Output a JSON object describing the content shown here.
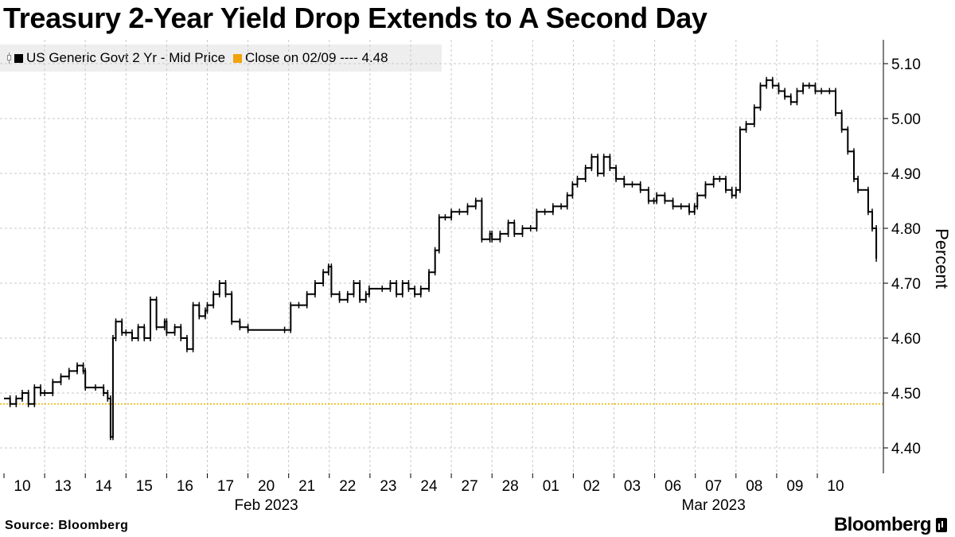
{
  "title": "Treasury 2-Year Yield Drop Extends to A Second Day",
  "legend": [
    {
      "label": "US Generic Govt 2 Yr - Mid Price",
      "color": "#000000",
      "icon": "ohlc-bar-icon"
    },
    {
      "label": "Close on 02/09 ---- 4.48",
      "color": "#f0a30a"
    }
  ],
  "source": "Source: Bloomberg",
  "brand": "Bloomberg",
  "colors": {
    "series": "#000000",
    "reference": "#e8b400",
    "grid": "#c8c8c8"
  },
  "chart_data": {
    "type": "line",
    "title": "Treasury 2-Year Yield Drop Extends to A Second Day",
    "ylabel": "Percent",
    "ylim": [
      4.35,
      5.15
    ],
    "y_ticks": [
      4.4,
      4.5,
      4.6,
      4.7,
      4.8,
      4.9,
      5.0,
      5.1
    ],
    "y_tick_labels": [
      "4.40",
      "4.50",
      "4.60",
      "4.70",
      "4.80",
      "4.90",
      "5.00",
      "5.10"
    ],
    "x_ticks": [
      "10",
      "13",
      "14",
      "15",
      "16",
      "17",
      "20",
      "21",
      "22",
      "23",
      "24",
      "27",
      "28",
      "01",
      "02",
      "03",
      "06",
      "07",
      "08",
      "09",
      "10"
    ],
    "x_month_labels": [
      {
        "label": "Feb 2023",
        "at": "20"
      },
      {
        "label": "Mar 2023",
        "at": "07"
      }
    ],
    "grid": true,
    "y_axis_side": "right",
    "legend_position": "top-left",
    "reference_line": {
      "label": "Close on 02/09",
      "value": 4.48,
      "style": "dotted"
    },
    "series": [
      {
        "name": "US Generic Govt 2 Yr - Mid Price",
        "style": "ohlc",
        "points": [
          [
            0.0,
            4.49
          ],
          [
            0.15,
            4.48
          ],
          [
            0.3,
            4.49
          ],
          [
            0.45,
            4.5
          ],
          [
            0.6,
            4.48
          ],
          [
            0.75,
            4.51
          ],
          [
            0.9,
            4.5
          ],
          [
            1.0,
            4.5
          ],
          [
            1.2,
            4.52
          ],
          [
            1.4,
            4.53
          ],
          [
            1.6,
            4.54
          ],
          [
            1.8,
            4.55
          ],
          [
            1.95,
            4.54
          ],
          [
            2.0,
            4.51
          ],
          [
            2.25,
            4.51
          ],
          [
            2.45,
            4.5
          ],
          [
            2.55,
            4.49
          ],
          [
            2.62,
            4.42
          ],
          [
            2.68,
            4.6
          ],
          [
            2.75,
            4.63
          ],
          [
            2.9,
            4.61
          ],
          [
            3.0,
            4.61
          ],
          [
            3.15,
            4.6
          ],
          [
            3.3,
            4.62
          ],
          [
            3.45,
            4.6
          ],
          [
            3.6,
            4.67
          ],
          [
            3.75,
            4.62
          ],
          [
            3.95,
            4.63
          ],
          [
            4.0,
            4.61
          ],
          [
            4.2,
            4.62
          ],
          [
            4.35,
            4.6
          ],
          [
            4.5,
            4.58
          ],
          [
            4.65,
            4.66
          ],
          [
            4.8,
            4.64
          ],
          [
            4.95,
            4.65
          ],
          [
            5.0,
            4.66
          ],
          [
            5.15,
            4.68
          ],
          [
            5.3,
            4.7
          ],
          [
            5.45,
            4.68
          ],
          [
            5.6,
            4.63
          ],
          [
            5.8,
            4.62
          ],
          [
            6.0,
            4.615
          ],
          [
            6.9,
            4.615
          ],
          [
            7.05,
            4.66
          ],
          [
            7.25,
            4.66
          ],
          [
            7.45,
            4.68
          ],
          [
            7.65,
            4.7
          ],
          [
            7.85,
            4.72
          ],
          [
            7.98,
            4.73
          ],
          [
            8.05,
            4.68
          ],
          [
            8.25,
            4.67
          ],
          [
            8.45,
            4.68
          ],
          [
            8.6,
            4.7
          ],
          [
            8.75,
            4.67
          ],
          [
            8.9,
            4.68
          ],
          [
            8.98,
            4.69
          ],
          [
            9.3,
            4.69
          ],
          [
            9.5,
            4.7
          ],
          [
            9.65,
            4.68
          ],
          [
            9.8,
            4.7
          ],
          [
            9.95,
            4.69
          ],
          [
            10.1,
            4.68
          ],
          [
            10.25,
            4.69
          ],
          [
            10.45,
            4.72
          ],
          [
            10.6,
            4.76
          ],
          [
            10.7,
            4.82
          ],
          [
            10.85,
            4.82
          ],
          [
            11.0,
            4.83
          ],
          [
            11.2,
            4.83
          ],
          [
            11.4,
            4.84
          ],
          [
            11.6,
            4.85
          ],
          [
            11.75,
            4.78
          ],
          [
            11.95,
            4.79
          ],
          [
            12.0,
            4.78
          ],
          [
            12.2,
            4.79
          ],
          [
            12.4,
            4.81
          ],
          [
            12.55,
            4.79
          ],
          [
            12.75,
            4.8
          ],
          [
            12.95,
            4.8
          ],
          [
            13.1,
            4.83
          ],
          [
            13.3,
            4.83
          ],
          [
            13.5,
            4.84
          ],
          [
            13.7,
            4.84
          ],
          [
            13.85,
            4.86
          ],
          [
            13.98,
            4.88
          ],
          [
            14.1,
            4.89
          ],
          [
            14.3,
            4.91
          ],
          [
            14.45,
            4.93
          ],
          [
            14.6,
            4.9
          ],
          [
            14.75,
            4.93
          ],
          [
            14.9,
            4.91
          ],
          [
            15.05,
            4.89
          ],
          [
            15.25,
            4.88
          ],
          [
            15.45,
            4.88
          ],
          [
            15.65,
            4.87
          ],
          [
            15.85,
            4.85
          ],
          [
            15.98,
            4.85
          ],
          [
            16.05,
            4.86
          ],
          [
            16.25,
            4.85
          ],
          [
            16.45,
            4.84
          ],
          [
            16.65,
            4.84
          ],
          [
            16.85,
            4.83
          ],
          [
            16.98,
            4.84
          ],
          [
            17.05,
            4.86
          ],
          [
            17.25,
            4.88
          ],
          [
            17.45,
            4.89
          ],
          [
            17.6,
            4.89
          ],
          [
            17.75,
            4.87
          ],
          [
            17.9,
            4.86
          ],
          [
            18.0,
            4.87
          ],
          [
            18.1,
            4.98
          ],
          [
            18.25,
            4.99
          ],
          [
            18.45,
            5.02
          ],
          [
            18.6,
            5.06
          ],
          [
            18.75,
            5.07
          ],
          [
            18.9,
            5.06
          ],
          [
            19.05,
            5.05
          ],
          [
            19.2,
            5.04
          ],
          [
            19.35,
            5.03
          ],
          [
            19.5,
            5.05
          ],
          [
            19.65,
            5.06
          ],
          [
            19.8,
            5.06
          ],
          [
            19.95,
            5.05
          ],
          [
            20.1,
            5.05
          ],
          [
            20.3,
            5.05
          ],
          [
            20.45,
            5.01
          ],
          [
            20.6,
            4.98
          ],
          [
            20.75,
            4.94
          ],
          [
            20.9,
            4.89
          ],
          [
            21.0,
            4.87
          ],
          [
            21.25,
            4.83
          ],
          [
            21.35,
            4.8
          ],
          [
            21.45,
            4.745
          ]
        ]
      }
    ]
  }
}
